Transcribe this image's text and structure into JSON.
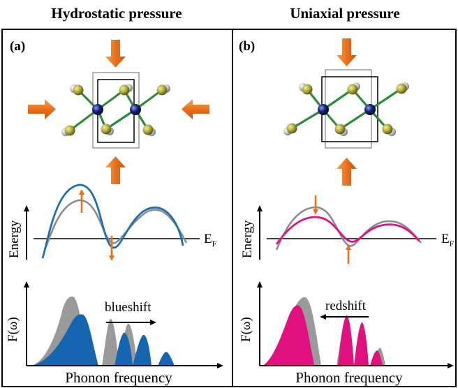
{
  "titles": {
    "left": "Hydrostatic pressure",
    "right": "Uniaxial pressure"
  },
  "panels": {
    "a": {
      "label": "(a)",
      "energy_label": "Energy",
      "fermi_label": "E",
      "fermi_sub": "F",
      "dos_label": "F(ω)",
      "shift_label": "blueshift",
      "shift_direction": "right",
      "xlabel": "Phonon frequency"
    },
    "b": {
      "label": "(b)",
      "energy_label": "Energy",
      "fermi_label": "E",
      "fermi_sub": "F",
      "dos_label": "F(ω)",
      "shift_label": "redshift",
      "shift_direction": "left",
      "xlabel": "Phonon frequency"
    }
  },
  "colors": {
    "arrow_orange": "#e8711f",
    "band_blue": "#1f6fb2",
    "band_magenta": "#e0107f",
    "band_gray": "#8c8c8c",
    "dos_gray": "#9a9a9a",
    "dos_blue": "#1565b0",
    "dos_magenta": "#e0107f",
    "atom_blue": "#1a237e",
    "atom_olive": "#b0aa3c",
    "bond_green": "#2e8b3a"
  }
}
